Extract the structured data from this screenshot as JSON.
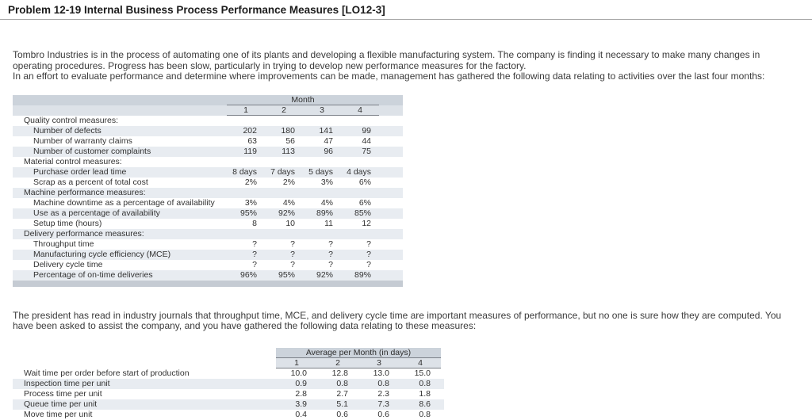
{
  "page_title": "Problem 12-19 Internal Business Process Performance Measures [LO12-3]",
  "intro": {
    "paragraph1": "Tombro Industries is in the process of automating one of its plants and developing a flexible manufacturing system. The company is finding it necessary to make many changes in operating procedures. Progress has been slow, particularly in trying to develop new performance measures for the factory.",
    "paragraph2": "In an effort to evaluate performance and determine where improvements can be made, management has gathered the following data relating to activities over the last four months:"
  },
  "table1": {
    "header": "Month",
    "columns": [
      "1",
      "2",
      "3",
      "4"
    ],
    "rows": [
      {
        "label": "Quality control measures:",
        "section": true
      },
      {
        "label": "Number of defects",
        "values": [
          "202",
          "180",
          "141",
          "99"
        ]
      },
      {
        "label": "Number of warranty claims",
        "values": [
          "63",
          "56",
          "47",
          "44"
        ]
      },
      {
        "label": "Number of customer complaints",
        "values": [
          "119",
          "113",
          "96",
          "75"
        ]
      },
      {
        "label": "Material control measures:",
        "section": true
      },
      {
        "label": "Purchase order lead time",
        "values": [
          "8 days",
          "7 days",
          "5 days",
          "4 days"
        ]
      },
      {
        "label": "Scrap as a percent of total cost",
        "values": [
          "2%",
          "2%",
          "3%",
          "6%"
        ]
      },
      {
        "label": "Machine performance measures:",
        "section": true
      },
      {
        "label": "Machine downtime as a percentage of availability",
        "values": [
          "3%",
          "4%",
          "4%",
          "6%"
        ]
      },
      {
        "label": "Use as a percentage of availability",
        "values": [
          "95%",
          "92%",
          "89%",
          "85%"
        ]
      },
      {
        "label": "Setup time (hours)",
        "values": [
          "8",
          "10",
          "11",
          "12"
        ]
      },
      {
        "label": "Delivery performance measures:",
        "section": true
      },
      {
        "label": "Throughput time",
        "values": [
          "?",
          "?",
          "?",
          "?"
        ]
      },
      {
        "label": "Manufacturing cycle efficiency (MCE)",
        "values": [
          "?",
          "?",
          "?",
          "?"
        ]
      },
      {
        "label": "Delivery cycle time",
        "values": [
          "?",
          "?",
          "?",
          "?"
        ]
      },
      {
        "label": "Percentage of on-time deliveries",
        "values": [
          "96%",
          "95%",
          "92%",
          "89%"
        ]
      }
    ]
  },
  "middle_paragraph": "The president has read in industry journals that throughput time, MCE, and delivery cycle time are important measures of performance, but no one is sure how they are computed. You have been asked to assist the company, and you have gathered the following data relating to these measures:",
  "table2": {
    "header": "Average per Month (in days)",
    "columns": [
      "1",
      "2",
      "3",
      "4"
    ],
    "rows": [
      {
        "label": "Wait time per order before start of production",
        "values": [
          "10.0",
          "12.8",
          "13.0",
          "15.0"
        ]
      },
      {
        "label": "Inspection time per unit",
        "values": [
          "0.9",
          "0.8",
          "0.8",
          "0.8"
        ]
      },
      {
        "label": "Process time per unit",
        "values": [
          "2.8",
          "2.7",
          "2.3",
          "1.8"
        ]
      },
      {
        "label": "Queue time per unit",
        "values": [
          "3.9",
          "5.1",
          "7.3",
          "8.6"
        ]
      },
      {
        "label": "Move time per unit",
        "values": [
          "0.4",
          "0.6",
          "0.6",
          "0.8"
        ]
      }
    ]
  }
}
